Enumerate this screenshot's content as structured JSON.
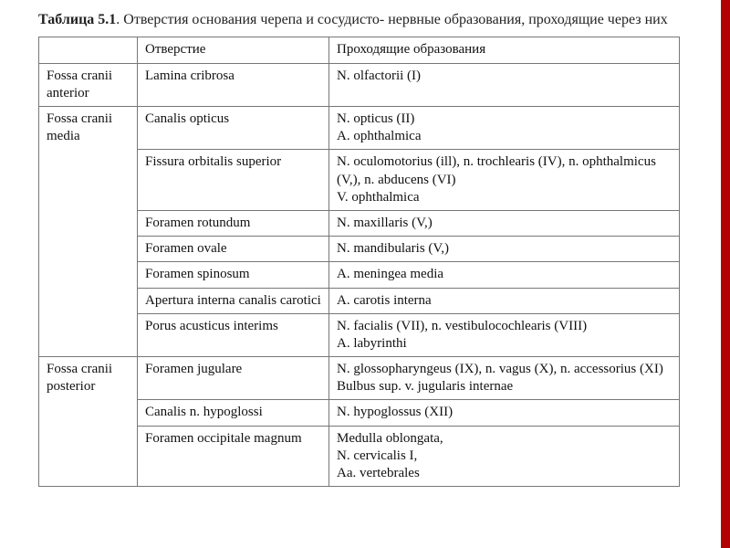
{
  "caption": {
    "label_prefix": "Таблица 5.1",
    "label_rest": ". Отверстия основания черепа и сосудисто- нервные образования, проходящие через них"
  },
  "table": {
    "columns": [
      "",
      "Отверстие",
      "Проходящие образования"
    ],
    "groups": [
      {
        "fossa": "Fossa cranii anterior",
        "rows": [
          {
            "opening": "Lamina cribrosa",
            "structures": "N. olfactorii (I)"
          }
        ]
      },
      {
        "fossa": "Fossa cranii media",
        "rows": [
          {
            "opening": "Canalis opticus",
            "structures": "N. opticus (II)\nA. ophthalmica"
          },
          {
            "opening": "Fissura orbitalis superior",
            "structures": "N. oculomotorius (ill), n. trochlearis (IV), n. ophthalmicus (V,), n. abducens (VI)\nV. ophthalmica"
          },
          {
            "opening": "Foramen rotundum",
            "structures": "N. maxillaris (V,)"
          },
          {
            "opening": "Foramen ovale",
            "structures": "N. mandibularis (V,)"
          },
          {
            "opening": "Foramen spinosum",
            "structures": "A. meningea media"
          },
          {
            "opening": "Apertura interna canalis carotici",
            "structures": "A. carotis interna"
          },
          {
            "opening": "Porus acusticus interims",
            "structures": "N. facialis (VII), n. vestibulocochlearis (VIII)\nA. labyrinthi"
          }
        ]
      },
      {
        "fossa": "Fossa cranii posterior",
        "rows": [
          {
            "opening": "Foramen jugulare",
            "structures": "N. glossopharyngeus (IX), n. vagus (X), n. accessorius (XI)\nBulbus sup. v. jugularis internae"
          },
          {
            "opening": "Canalis n. hypoglossi",
            "structures": "N. hypoglossus (XII)"
          },
          {
            "opening": "Foramen occipitale magnum",
            "structures": "Medulla oblongata,\nN. cervicalis I,\nAa. vertebrales"
          }
        ]
      }
    ]
  },
  "colors": {
    "accent_bar": "#b30000",
    "border": "#777777",
    "text": "#111111"
  }
}
